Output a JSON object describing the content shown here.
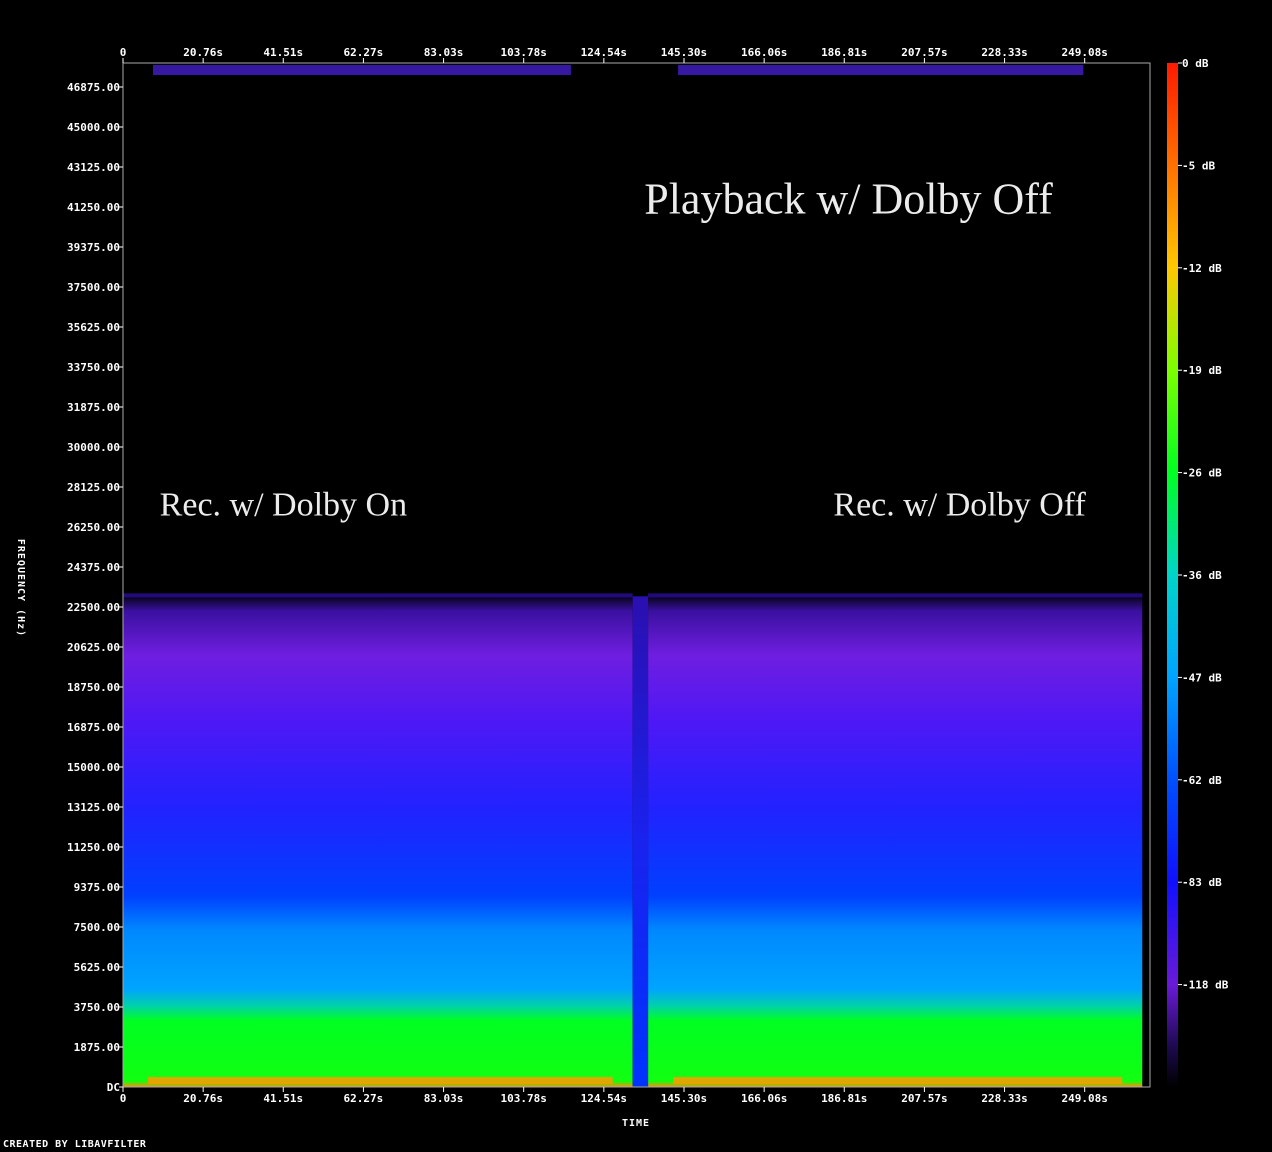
{
  "chart_data": {
    "type": "heatmap",
    "title": "",
    "xlabel": "TIME",
    "ylabel": "FREQUENCY (Hz)",
    "x_tick_labels": [
      "0",
      "20.76s",
      "41.51s",
      "62.27s",
      "83.03s",
      "103.78s",
      "124.54s",
      "145.30s",
      "166.06s",
      "186.81s",
      "207.57s",
      "228.33s",
      "249.08s"
    ],
    "x_tick_values": [
      0,
      20.76,
      41.51,
      62.27,
      83.03,
      103.78,
      124.54,
      145.3,
      166.06,
      186.81,
      207.57,
      228.33,
      249.08
    ],
    "xlim": [
      0,
      266
    ],
    "y_tick_labels": [
      "DC",
      "1875.00",
      "3750.00",
      "5625.00",
      "7500.00",
      "9375.00",
      "11250.00",
      "13125.00",
      "15000.00",
      "16875.00",
      "18750.00",
      "20625.00",
      "22500.00",
      "24375.00",
      "26250.00",
      "28125.00",
      "30000.00",
      "31875.00",
      "33750.00",
      "35625.00",
      "37500.00",
      "39375.00",
      "41250.00",
      "43125.00",
      "45000.00",
      "46875.00"
    ],
    "y_tick_values": [
      0,
      1875,
      3750,
      5625,
      7500,
      9375,
      11250,
      13125,
      15000,
      16875,
      18750,
      20625,
      22500,
      24375,
      26250,
      28125,
      30000,
      31875,
      33750,
      35625,
      37500,
      39375,
      41250,
      43125,
      45000,
      46875
    ],
    "ylim": [
      0,
      48000
    ],
    "colorbar": {
      "labels": [
        "0 dB",
        "-5 dB",
        "-12 dB",
        "-19 dB",
        "-26 dB",
        "-36 dB",
        "-47 dB",
        "-62 dB",
        "-83 dB",
        "-118 dB"
      ],
      "values": [
        0,
        -5,
        -12,
        -19,
        -26,
        -36,
        -47,
        -62,
        -83,
        -118
      ]
    },
    "segments": [
      {
        "start": 0,
        "end": 132,
        "bandwidth_hz": 23000
      },
      {
        "start": 136,
        "end": 264,
        "bandwidth_hz": 23000
      }
    ],
    "annotations": [
      {
        "text": "Playback w/ Dolby Off",
        "time": 135,
        "freq": 40950
      },
      {
        "text": "Rec. w/ Dolby On",
        "time": 9.5,
        "freq": 26800
      },
      {
        "text": "Rec. w/ Dolby Off",
        "time": 184,
        "freq": 26800
      }
    ]
  },
  "footer": "CREATED BY LIBAVFILTER"
}
